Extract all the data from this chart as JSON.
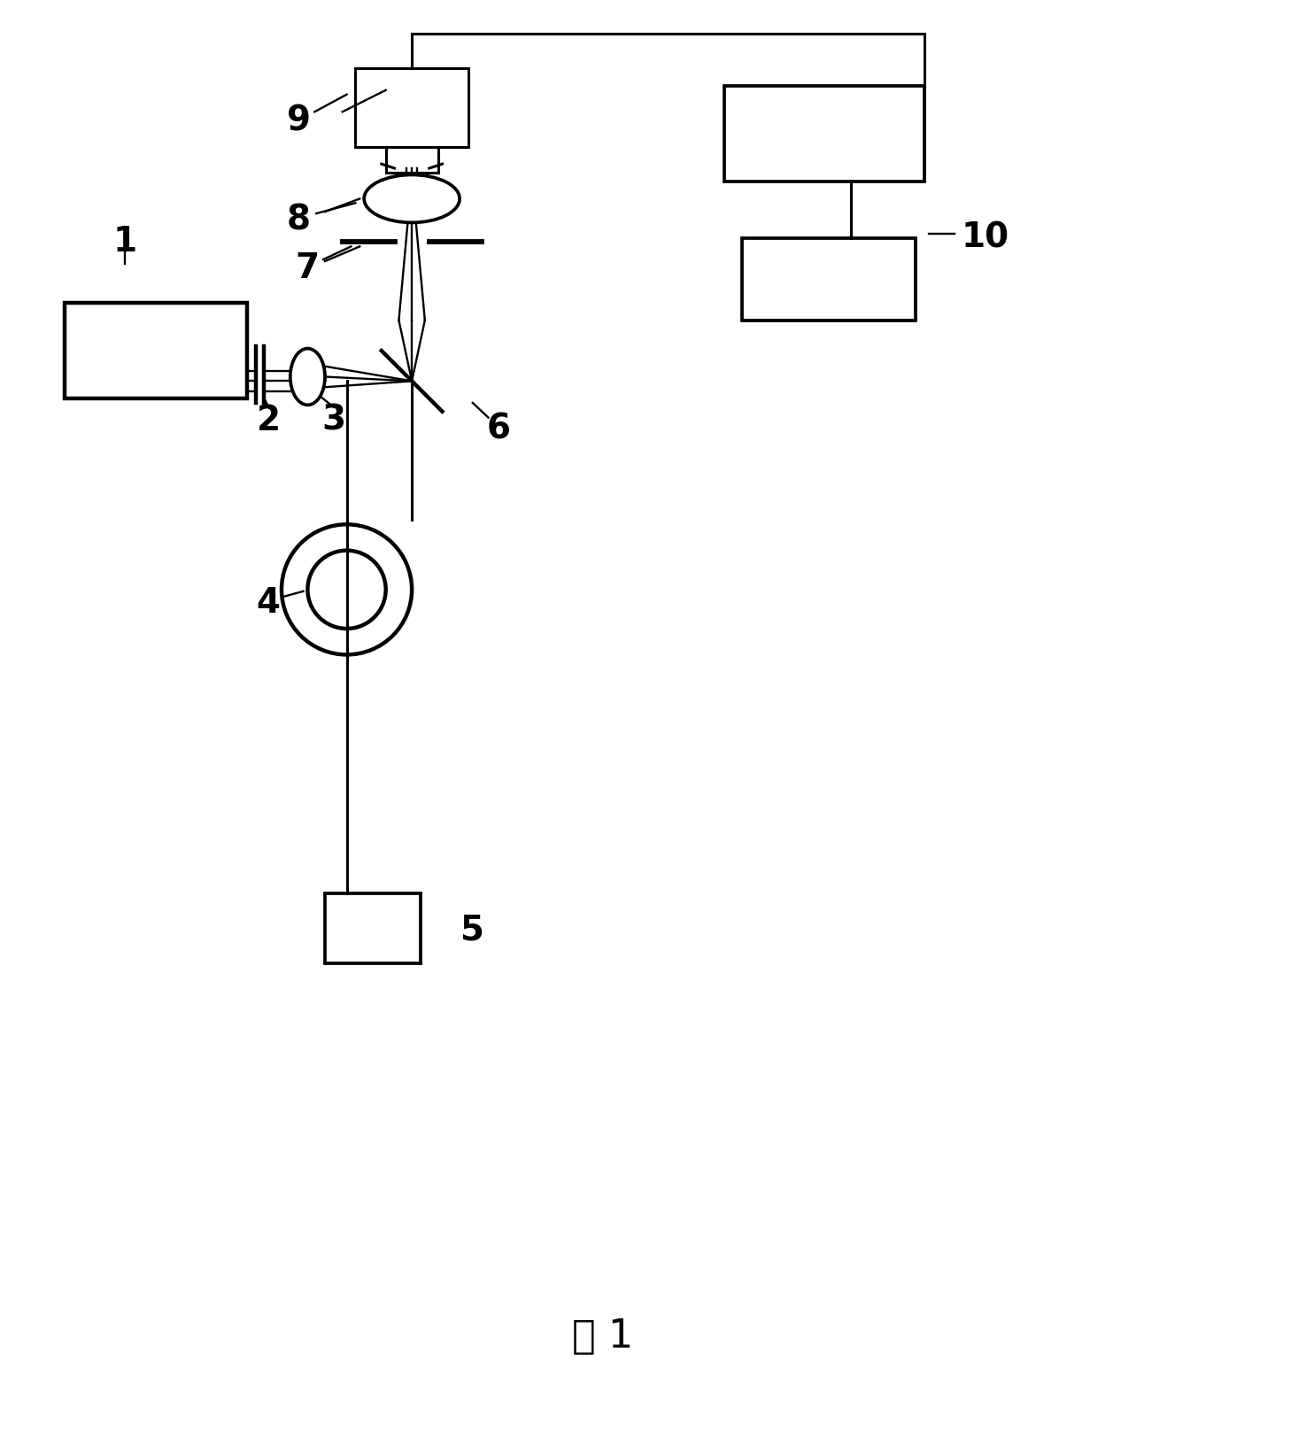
{
  "bg_color": "#ffffff",
  "line_color": "#000000",
  "lw": 2.2,
  "fig_width": 14.58,
  "fig_height": 16.23,
  "caption": "图 1"
}
